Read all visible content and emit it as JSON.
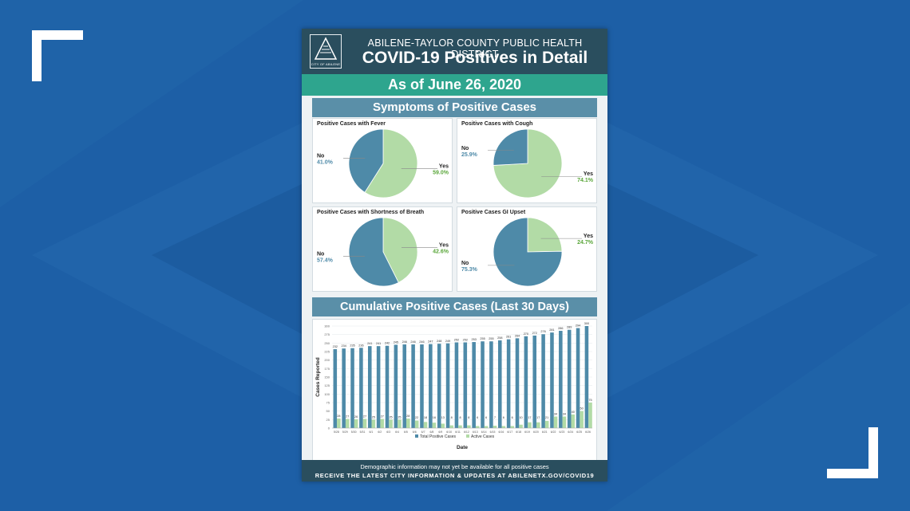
{
  "poster": {
    "logo_text": "CITY OF ABILENE",
    "org": "ABILENE-TAYLOR COUNTY PUBLIC HEALTH DISTRICT",
    "title": "COVID-19 Positives in Detail",
    "as_of": "As of June 26, 2020",
    "symptoms_heading": "Symptoms of Positive Cases",
    "cumulative_heading": "Cumulative Positive Cases (Last 30 Days)",
    "footer_line1": "Demographic information may not yet be available for all positive cases",
    "footer_line2": "RECEIVE THE LATEST CITY INFORMATION & UPDATES AT ABILENETX.GOV/COVID19"
  },
  "colors": {
    "background": "#1d5fa6",
    "header": "#2a4e5e",
    "teal_band": "#2ea58e",
    "section_band": "#5a8fa8",
    "pie_no": "#4e8aa8",
    "pie_yes": "#b2dba6",
    "total_bar": "#4e8aa8",
    "active_bar": "#b2dba6",
    "yes_label": "#5aa63a",
    "no_label": "#4e8aa8"
  },
  "chart_data": [
    {
      "type": "pie",
      "title": "Positive Cases with Fever",
      "slices": [
        {
          "label": "No",
          "value": 41.0,
          "display": "41.0%"
        },
        {
          "label": "Yes",
          "value": 59.0,
          "display": "59.0%"
        }
      ]
    },
    {
      "type": "pie",
      "title": "Positive Cases with Cough",
      "slices": [
        {
          "label": "No",
          "value": 25.9,
          "display": "25.9%"
        },
        {
          "label": "Yes",
          "value": 74.1,
          "display": "74.1%"
        }
      ]
    },
    {
      "type": "pie",
      "title": "Positive Cases with Shortness of Breath",
      "slices": [
        {
          "label": "No",
          "value": 57.4,
          "display": "57.4%"
        },
        {
          "label": "Yes",
          "value": 42.6,
          "display": "42.6%"
        }
      ]
    },
    {
      "type": "pie",
      "title": "Positive Cases GI Upset",
      "slices": [
        {
          "label": "No",
          "value": 75.3,
          "display": "75.3%"
        },
        {
          "label": "Yes",
          "value": 24.7,
          "display": "24.7%"
        }
      ]
    },
    {
      "type": "bar",
      "xlabel": "Date",
      "ylabel": "Cases Reported",
      "ylim": [
        0,
        300
      ],
      "yticks": [
        0,
        25,
        50,
        75,
        100,
        125,
        150,
        175,
        200,
        225,
        250,
        275,
        300
      ],
      "categories": [
        "5/28",
        "5/29",
        "5/30",
        "5/31",
        "6/1",
        "6/2",
        "6/3",
        "6/4",
        "6/5",
        "6/6",
        "6/7",
        "6/8",
        "6/9",
        "6/10",
        "6/11",
        "6/12",
        "6/13",
        "6/14",
        "6/15",
        "6/16",
        "6/17",
        "6/18",
        "6/19",
        "6/20",
        "6/21",
        "6/22",
        "6/23",
        "6/24",
        "6/25",
        "6/26"
      ],
      "series": [
        {
          "name": "Total Positive Cases",
          "values": [
            232,
            234,
            235,
            236,
            241,
            241,
            242,
            245,
            246,
            246,
            246,
            247,
            248,
            249,
            252,
            252,
            253,
            255,
            255,
            258,
            261,
            264,
            270,
            272,
            276,
            281,
            286,
            289,
            294,
            300
          ]
        },
        {
          "name": "Active Cases",
          "values": [
            28,
            27,
            26,
            27,
            25,
            27,
            25,
            25,
            28,
            22,
            18,
            16,
            13,
            8,
            8,
            8,
            6,
            6,
            7,
            6,
            6,
            10,
            17,
            17,
            21,
            34,
            34,
            40,
            50,
            75
          ]
        }
      ],
      "legend": "bottom"
    }
  ]
}
